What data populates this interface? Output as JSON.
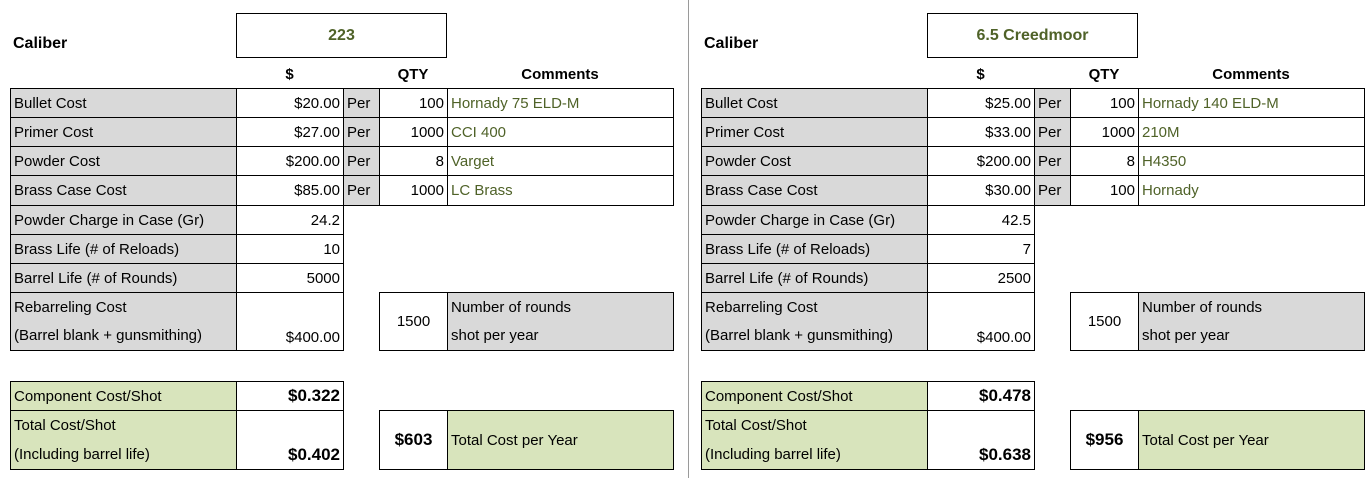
{
  "headers": {
    "dollar": "$",
    "qty": "QTY",
    "comments": "Comments"
  },
  "labels": {
    "caliber": "Caliber",
    "bullet_cost": "Bullet Cost",
    "primer_cost": "Primer Cost",
    "powder_cost": "Powder Cost",
    "brass_case_cost": "Brass Case Cost",
    "powder_charge": "Powder Charge in Case (Gr)",
    "brass_life": "Brass Life (# of Reloads)",
    "barrel_life": "Barrel Life (# of Rounds)",
    "rebarreling_line1": "Rebarreling Cost",
    "rebarreling_line2": "(Barrel blank + gunsmithing)",
    "component_cost_shot": "Component Cost/Shot",
    "total_cost_shot_line1": "Total Cost/Shot",
    "total_cost_shot_line2": "(Including barrel life)",
    "per": "Per",
    "rounds_line1": "Number of rounds",
    "rounds_line2": "shot per year",
    "total_cost_per_year": "Total Cost per Year"
  },
  "left": {
    "caliber": "223",
    "bullet": {
      "cost": "$20.00",
      "qty": "100",
      "comment": "Hornady 75 ELD-M"
    },
    "primer": {
      "cost": "$27.00",
      "qty": "1000",
      "comment": "CCI 400"
    },
    "powder": {
      "cost": "$200.00",
      "qty": "8",
      "comment": "Varget"
    },
    "brass": {
      "cost": "$85.00",
      "qty": "1000",
      "comment": "LC Brass"
    },
    "powder_charge": "24.2",
    "brass_life": "10",
    "barrel_life": "5000",
    "rebarreling_cost": "$400.00",
    "rounds_per_year": "1500",
    "component_cost_shot": "$0.322",
    "total_cost_shot": "$0.402",
    "total_cost_year": "$603"
  },
  "right": {
    "caliber": "6.5 Creedmoor",
    "bullet": {
      "cost": "$25.00",
      "qty": "100",
      "comment": "Hornady 140 ELD-M"
    },
    "primer": {
      "cost": "$33.00",
      "qty": "1000",
      "comment": "210M"
    },
    "powder": {
      "cost": "$200.00",
      "qty": "8",
      "comment": "H4350"
    },
    "brass": {
      "cost": "$30.00",
      "qty": "100",
      "comment": "Hornady"
    },
    "powder_charge": "42.5",
    "brass_life": "7",
    "barrel_life": "2500",
    "rebarreling_cost": "$400.00",
    "rounds_per_year": "1500",
    "component_cost_shot": "$0.478",
    "total_cost_shot": "$0.638",
    "total_cost_year": "$956"
  }
}
